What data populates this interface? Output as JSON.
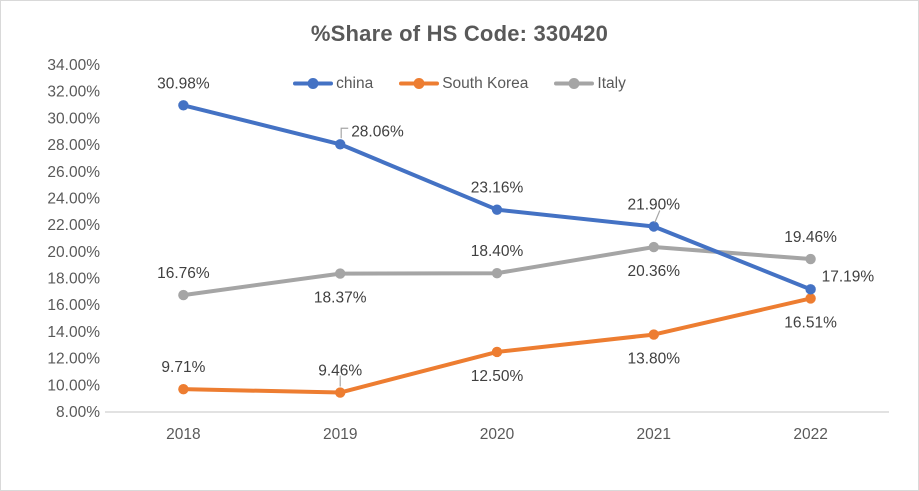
{
  "chart_data": {
    "type": "line",
    "title": "%Share of HS Code: 330420",
    "categories": [
      "2018",
      "2019",
      "2020",
      "2021",
      "2022"
    ],
    "xlabel": "",
    "ylabel": "",
    "grid": false,
    "legend_position": "top-center",
    "y_axis": {
      "min": 8,
      "max": 34,
      "step": 2,
      "tick_labels": [
        "34.00%",
        "32.00%",
        "30.00%",
        "28.00%",
        "26.00%",
        "24.00%",
        "22.00%",
        "20.00%",
        "18.00%",
        "16.00%",
        "14.00%",
        "12.00%",
        "10.00%",
        "8.00%"
      ]
    },
    "series": [
      {
        "name": "china",
        "color": "#4472C4",
        "values": [
          30.98,
          28.06,
          23.16,
          21.9,
          17.19
        ],
        "data_labels": [
          "30.98%",
          "28.06%",
          "23.16%",
          "21.90%",
          "17.19%"
        ],
        "label_positions": [
          "above",
          "right-up",
          "above",
          "above",
          "right-up"
        ],
        "leaders": [
          "",
          "elbow",
          "",
          "diag",
          ""
        ]
      },
      {
        "name": "South Korea",
        "color": "#ED7D31",
        "values": [
          9.71,
          9.46,
          12.5,
          13.8,
          16.51
        ],
        "data_labels": [
          "9.71%",
          "9.46%",
          "12.50%",
          "13.80%",
          "16.51%"
        ],
        "label_positions": [
          "above",
          "above",
          "below",
          "below",
          "below"
        ],
        "leaders": [
          "",
          "vert",
          "",
          "",
          ""
        ]
      },
      {
        "name": "Italy",
        "color": "#A5A5A5",
        "values": [
          16.76,
          18.37,
          18.4,
          20.36,
          19.46
        ],
        "data_labels": [
          "16.76%",
          "18.37%",
          "18.40%",
          "20.36%",
          "19.46%"
        ],
        "label_positions": [
          "above",
          "below",
          "above",
          "below",
          "above"
        ],
        "leaders": [
          "",
          "",
          "",
          "",
          ""
        ]
      }
    ],
    "colors": {
      "title_text": "#595959",
      "axis_text": "#595959",
      "data_label_text": "#404040",
      "axis_line": "#D9D9D9",
      "leader_line": "#A6A6A6",
      "frame_border": "#D9D9D9"
    }
  }
}
